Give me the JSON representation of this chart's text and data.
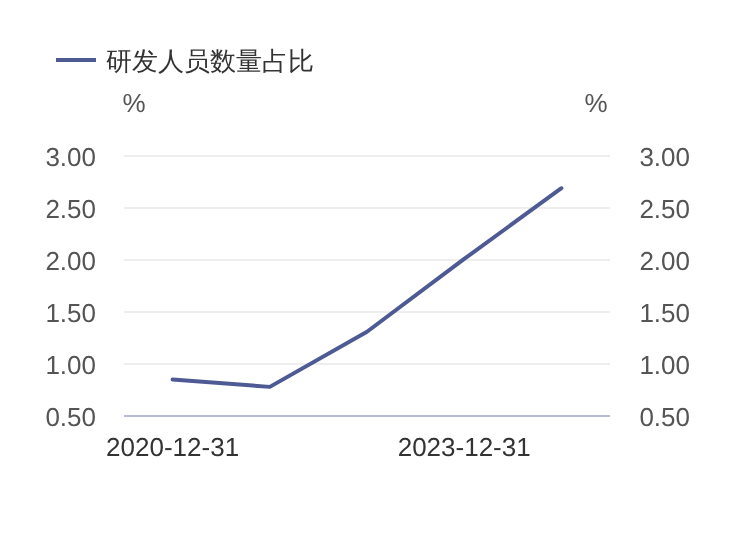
{
  "chart_data": {
    "type": "line",
    "legend": "top left",
    "grid": "y",
    "marker": "none",
    "ylabel": "%",
    "y2label": "%",
    "categories": [
      "2020-12-31",
      null,
      null,
      "2023-12-31",
      null
    ],
    "series": [
      {
        "name": "研发人员数量占比",
        "color": "#4e5a94",
        "values": [
          0.85,
          0.78,
          1.31,
          2.01,
          2.69
        ]
      }
    ],
    "ylim": [
      0.5,
      3.0
    ],
    "yticks": [
      {
        "value": 0.5,
        "label": "0.50"
      },
      {
        "value": 1.0,
        "label": "1.00"
      },
      {
        "value": 1.5,
        "label": "1.50"
      },
      {
        "value": 2.0,
        "label": "2.00"
      },
      {
        "value": 2.5,
        "label": "2.50"
      },
      {
        "value": 3.0,
        "label": "3.00"
      }
    ],
    "y2lim": [
      0.5,
      3.0
    ],
    "y2ticks": [
      {
        "value": 0.5,
        "label": "0.50"
      },
      {
        "value": 1.0,
        "label": "1.00"
      },
      {
        "value": 1.5,
        "label": "1.50"
      },
      {
        "value": 2.0,
        "label": "2.00"
      },
      {
        "value": 2.5,
        "label": "2.50"
      },
      {
        "value": 3.0,
        "label": "3.00"
      }
    ]
  }
}
